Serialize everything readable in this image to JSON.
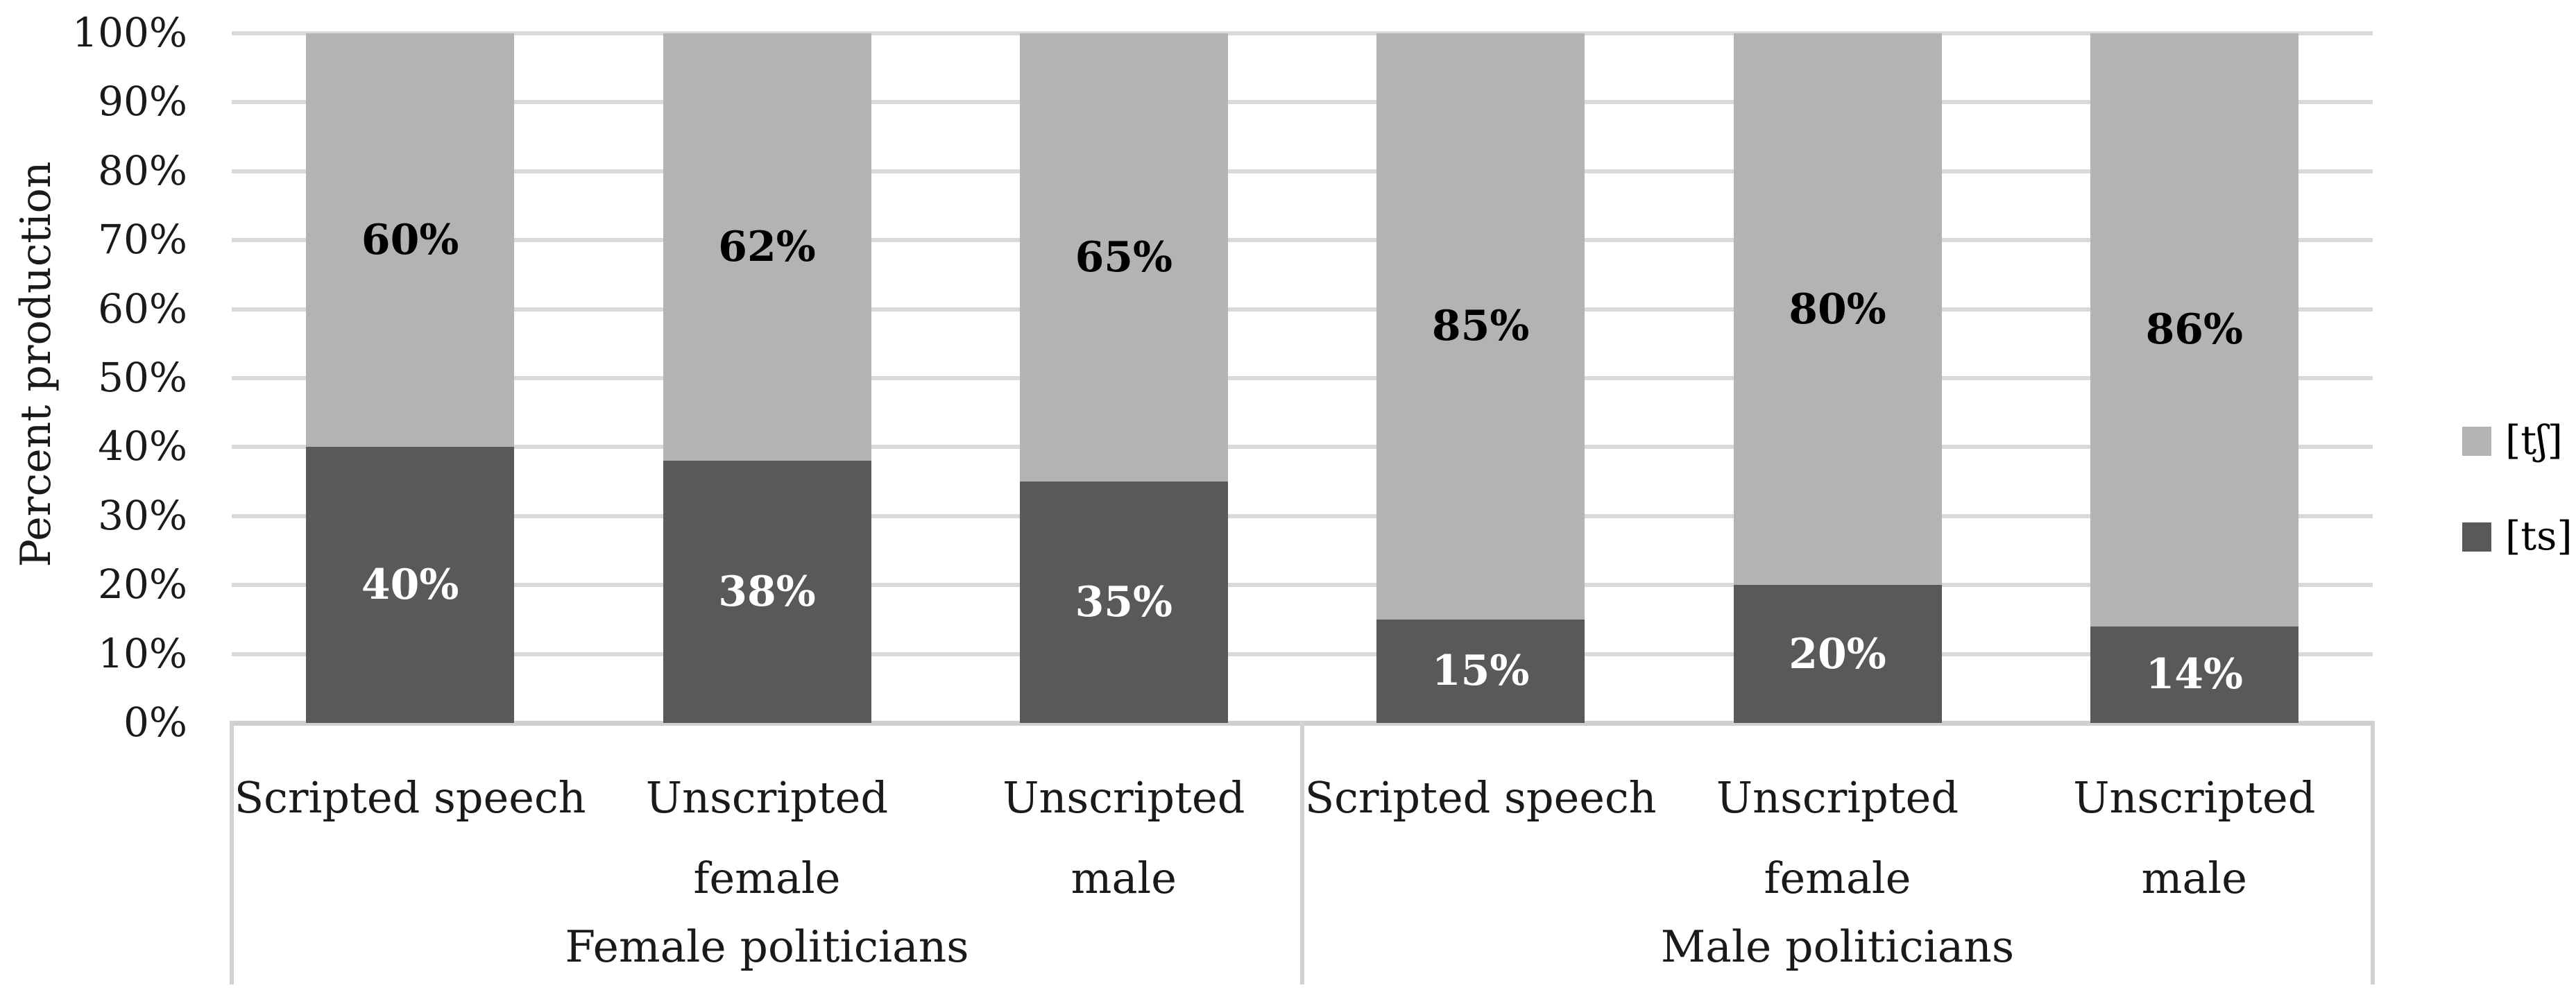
{
  "chart_data": {
    "type": "bar",
    "stacked": true,
    "title": "",
    "ylabel": "Percent production",
    "ylim": [
      0,
      100
    ],
    "yticks": [
      "0%",
      "10%",
      "20%",
      "30%",
      "40%",
      "50%",
      "60%",
      "70%",
      "80%",
      "90%",
      "100%"
    ],
    "grid": true,
    "legend_position": "right",
    "groups": [
      {
        "label": "Female politicians",
        "categories": [
          [
            "Scripted speech"
          ],
          [
            "Unscripted",
            "female"
          ],
          [
            "Unscripted male"
          ]
        ]
      },
      {
        "label": "Male politicians",
        "categories": [
          [
            "Scripted speech"
          ],
          [
            "Unscripted",
            "female"
          ],
          [
            "Unscripted male"
          ]
        ]
      }
    ],
    "series": [
      {
        "name": "[tʃ]",
        "color": "#b3b3b3",
        "label_color": "#000000",
        "values": [
          60,
          62,
          65,
          85,
          80,
          86
        ],
        "labels": [
          "60%",
          "62%",
          "65%",
          "85%",
          "80%",
          "86%"
        ]
      },
      {
        "name": "[ts]",
        "color": "#595959",
        "label_color": "#ffffff",
        "values": [
          40,
          38,
          35,
          15,
          20,
          14
        ],
        "labels": [
          "40%",
          "38%",
          "35%",
          "15%",
          "20%",
          "14%"
        ]
      }
    ],
    "colors": {
      "gridline": "#d9d9d9",
      "axis_line": "#cfcfcf",
      "separator": "#d2d2d2",
      "background": "#ffffff"
    }
  }
}
